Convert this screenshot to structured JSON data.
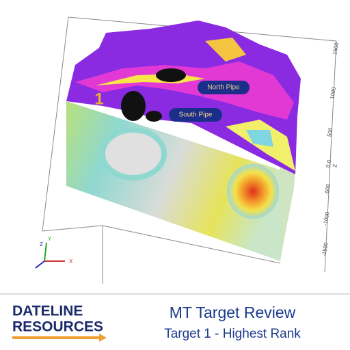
{
  "model": {
    "target_label": "1",
    "annotations": [
      "North Pipe",
      "South Pipe"
    ],
    "axis_ticks": [
      "1500",
      "1000",
      "500",
      "0.0",
      "Z",
      "-500",
      "-1000",
      "-1500"
    ],
    "triad": [
      "X",
      "Y",
      "Z"
    ]
  },
  "footer": {
    "logo": [
      "DATELINE",
      "RESOURCES"
    ],
    "title": "MT Target Review",
    "subtitle": "Target 1 - Highest Rank"
  }
}
